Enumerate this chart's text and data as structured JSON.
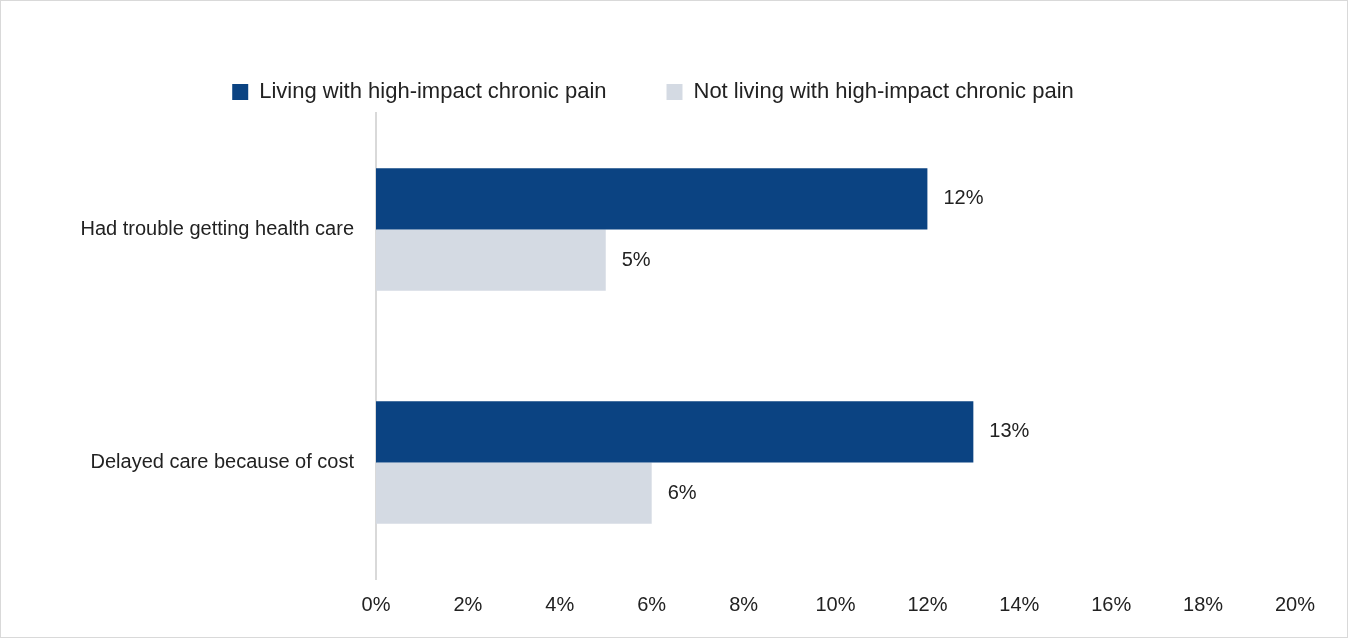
{
  "chart_data": {
    "type": "bar",
    "orientation": "horizontal",
    "categories": [
      "Had trouble getting health care",
      "Delayed care because of cost"
    ],
    "series": [
      {
        "name": "Living with high-impact chronic pain",
        "color": "#0b4382",
        "values": [
          12,
          13
        ],
        "value_labels": [
          "12%",
          "13%"
        ]
      },
      {
        "name": "Not living with high-impact chronic pain",
        "color": "#d4dae3",
        "values": [
          5,
          6
        ],
        "value_labels": [
          "5%",
          "6%"
        ]
      }
    ],
    "xlim": [
      0,
      20
    ],
    "xticks": [
      {
        "value": 0,
        "label": "0%"
      },
      {
        "value": 2,
        "label": "2%"
      },
      {
        "value": 4,
        "label": "4%"
      },
      {
        "value": 6,
        "label": "6%"
      },
      {
        "value": 8,
        "label": "8%"
      },
      {
        "value": 10,
        "label": "10%"
      },
      {
        "value": 12,
        "label": "12%"
      },
      {
        "value": 14,
        "label": "14%"
      },
      {
        "value": 16,
        "label": "16%"
      },
      {
        "value": 18,
        "label": "18%"
      },
      {
        "value": 20,
        "label": "20%"
      }
    ],
    "grid": false,
    "legend": "top"
  }
}
